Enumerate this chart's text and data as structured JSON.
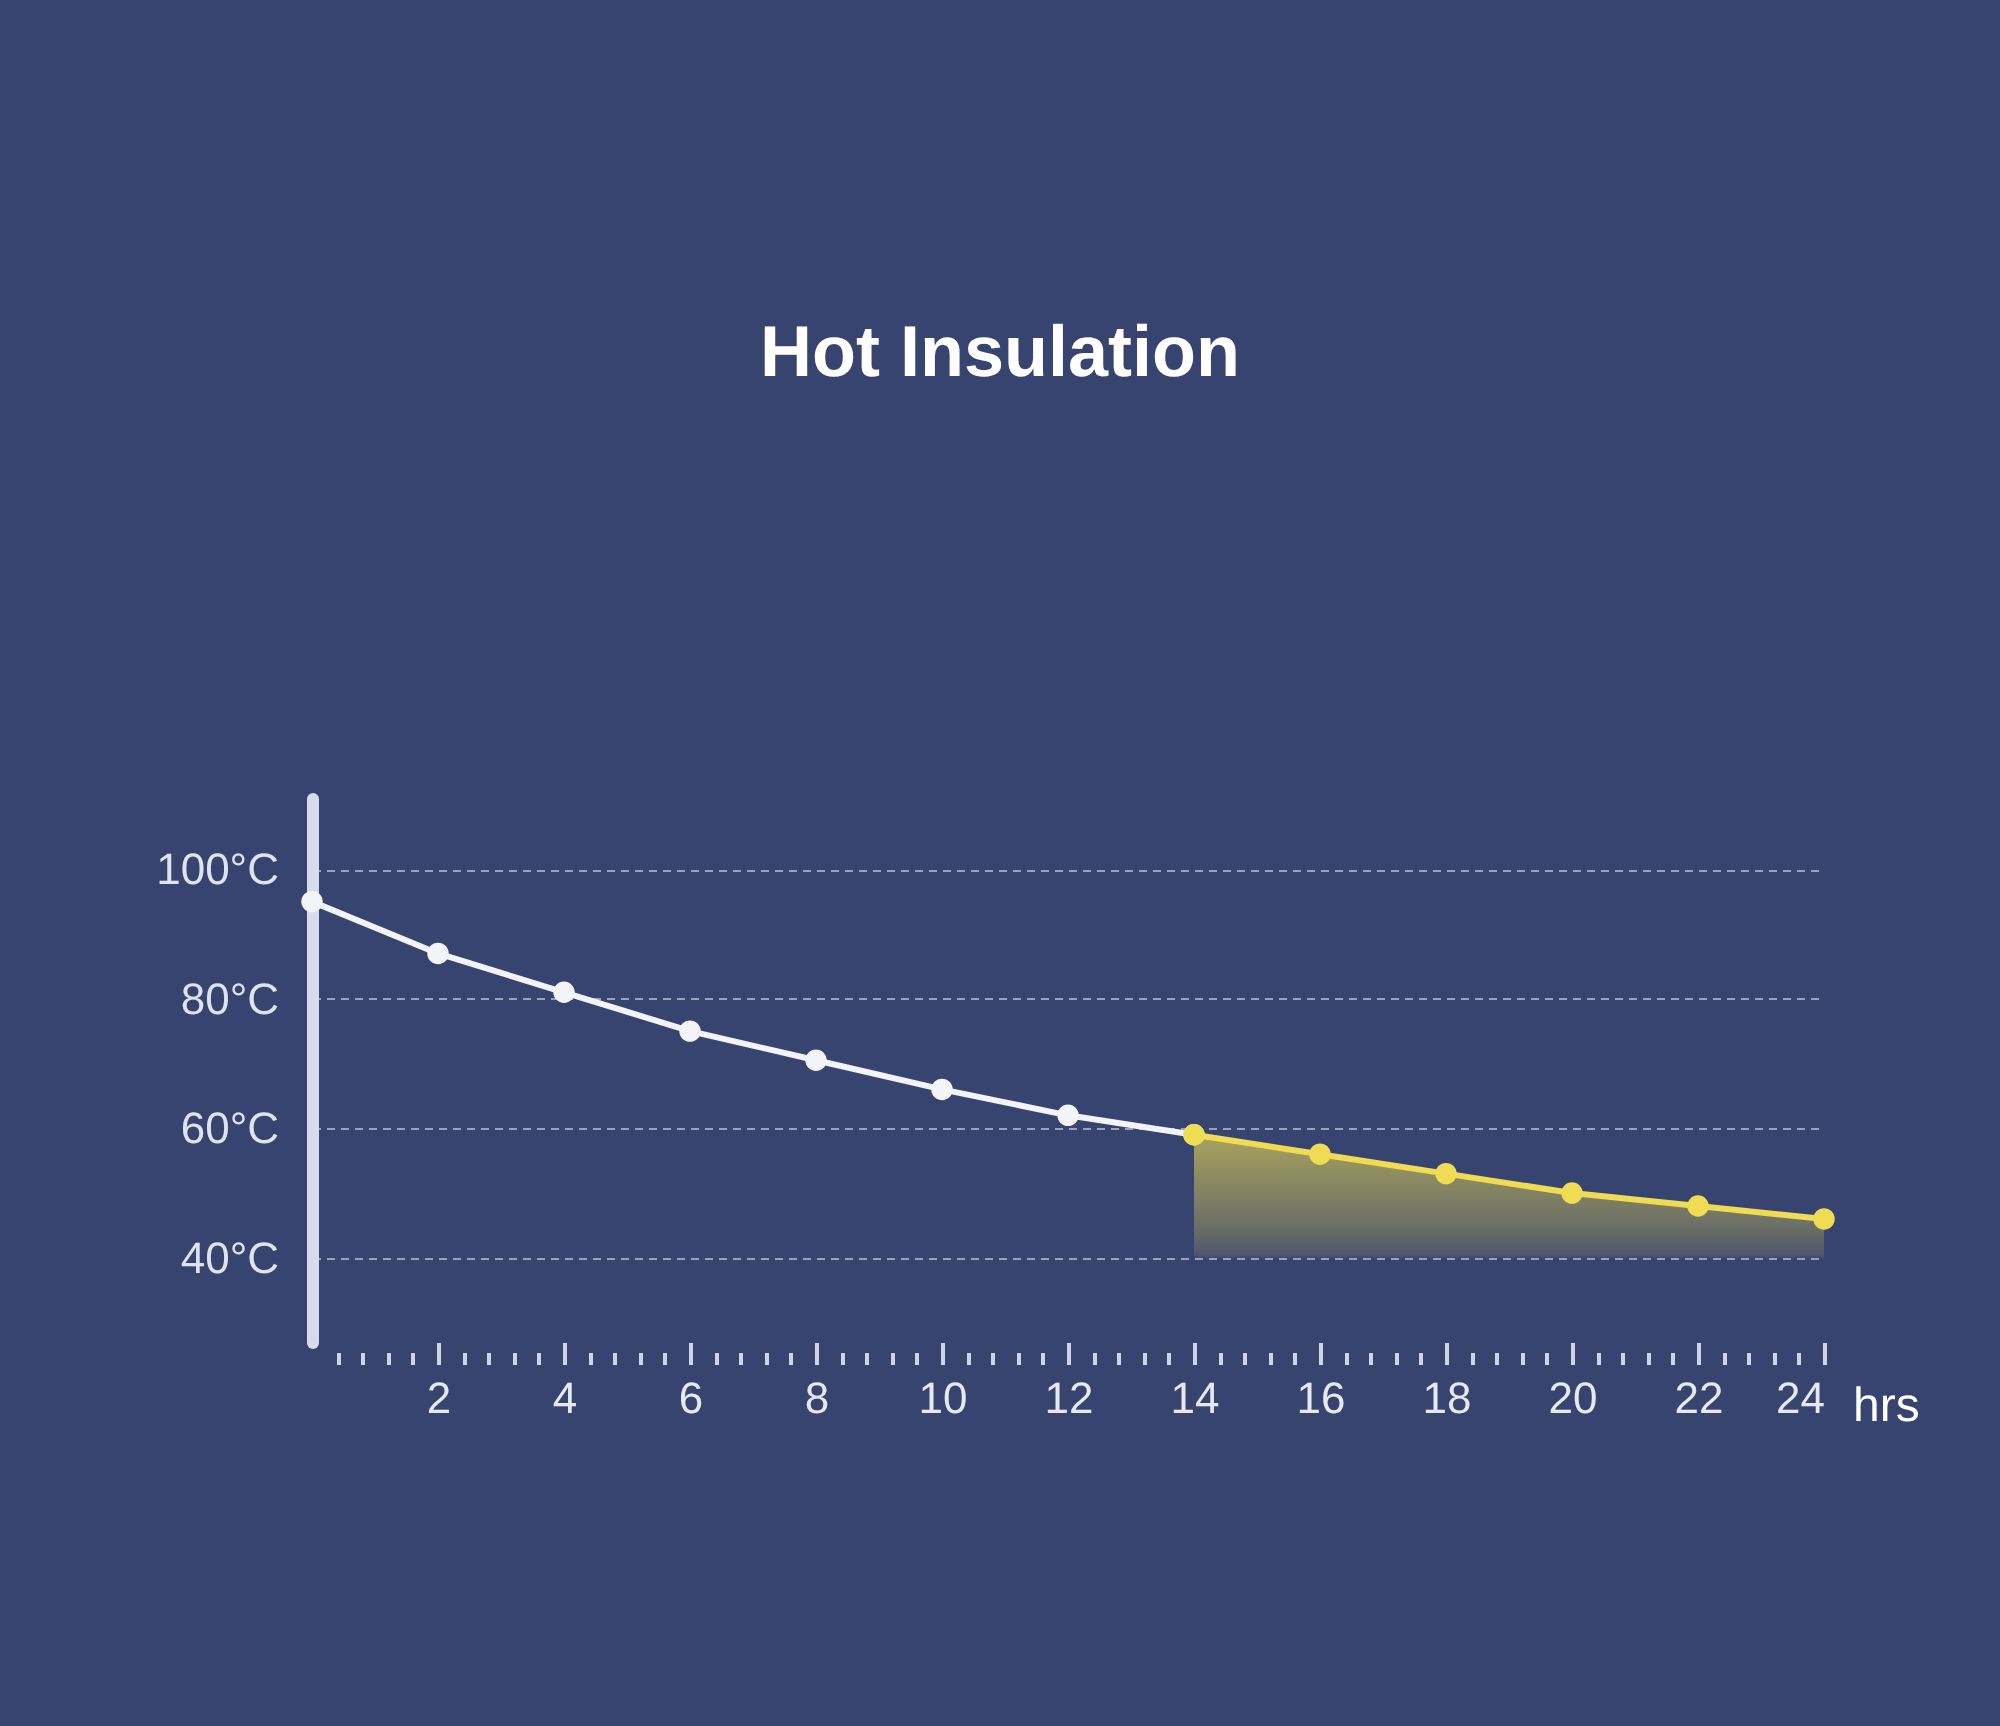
{
  "chart_data": {
    "type": "line",
    "title": "Hot Insulation",
    "xlabel": "hrs",
    "xlim": [
      0,
      24
    ],
    "xticks": [
      {
        "value": 0.4,
        "label": null
      },
      {
        "value": 0.8,
        "label": null
      },
      {
        "value": 1.2,
        "label": null
      },
      {
        "value": 1.6,
        "label": null
      },
      2,
      {
        "value": 2.4,
        "label": null
      },
      {
        "value": 2.8,
        "label": null
      },
      {
        "value": 3.2,
        "label": null
      },
      {
        "value": 3.6,
        "label": null
      },
      4,
      {
        "value": 4.4,
        "label": null
      },
      {
        "value": 4.8,
        "label": null
      },
      {
        "value": 5.2,
        "label": null
      },
      {
        "value": 5.6,
        "label": null
      },
      6,
      {
        "value": 6.4,
        "label": null
      },
      {
        "value": 6.8,
        "label": null
      },
      {
        "value": 7.2,
        "label": null
      },
      {
        "value": 7.6,
        "label": null
      },
      8,
      {
        "value": 8.4,
        "label": null
      },
      {
        "value": 8.8,
        "label": null
      },
      {
        "value": 9.2,
        "label": null
      },
      {
        "value": 9.6,
        "label": null
      },
      10,
      {
        "value": 10.4,
        "label": null
      },
      {
        "value": 10.8,
        "label": null
      },
      {
        "value": 11.2,
        "label": null
      },
      {
        "value": 11.6,
        "label": null
      },
      12,
      {
        "value": 12.4,
        "label": null
      },
      {
        "value": 12.8,
        "label": null
      },
      {
        "value": 13.2,
        "label": null
      },
      {
        "value": 13.6,
        "label": null
      },
      14,
      {
        "value": 14.4,
        "label": null
      },
      {
        "value": 14.8,
        "label": null
      },
      {
        "value": 15.2,
        "label": null
      },
      {
        "value": 15.6,
        "label": null
      },
      16,
      {
        "value": 16.4,
        "label": null
      },
      {
        "value": 16.8,
        "label": null
      },
      {
        "value": 17.2,
        "label": null
      },
      {
        "value": 17.6,
        "label": null
      },
      18,
      {
        "value": 18.4,
        "label": null
      },
      {
        "value": 18.8,
        "label": null
      },
      {
        "value": 19.2,
        "label": null
      },
      {
        "value": 19.6,
        "label": null
      },
      20,
      {
        "value": 20.4,
        "label": null
      },
      {
        "value": 20.8,
        "label": null
      },
      {
        "value": 21.2,
        "label": null
      },
      {
        "value": 21.6,
        "label": null
      },
      22,
      {
        "value": 22.4,
        "label": null
      },
      {
        "value": 22.8,
        "label": null
      },
      {
        "value": 23.2,
        "label": null
      },
      {
        "value": 23.6,
        "label": null
      },
      24
    ],
    "ylim": [
      27,
      111
    ],
    "yticks": [
      {
        "value": 40,
        "label": "40°C"
      },
      {
        "value": 60,
        "label": "60°C"
      },
      {
        "value": 80,
        "label": "80°C"
      },
      {
        "value": 100,
        "label": "100°C"
      }
    ],
    "grid": "y",
    "marker": "circle",
    "line_style": "solid",
    "series": [
      {
        "color": "#f3f4f7",
        "x": [
          0,
          2,
          4,
          6,
          8,
          10,
          12,
          14
        ],
        "values": [
          95,
          87,
          81,
          75,
          70.5,
          66,
          62,
          59
        ]
      },
      {
        "type": "area",
        "color": "#f0dc52",
        "x": [
          14,
          16,
          18,
          20,
          22,
          24
        ],
        "values": [
          59,
          56,
          53,
          50,
          48,
          46
        ]
      }
    ]
  }
}
